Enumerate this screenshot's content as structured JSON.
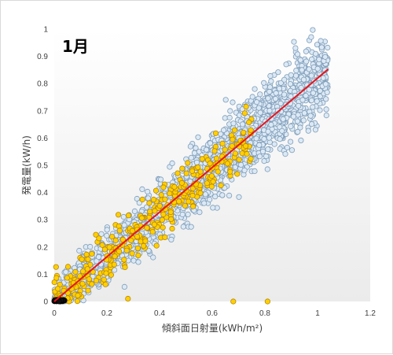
{
  "chart_data": {
    "type": "scatter",
    "title": "1月",
    "xlabel": "傾斜面日射量(kWh/m²)",
    "ylabel": "発電量(kW/h)",
    "xlim": [
      0,
      1.2
    ],
    "ylim": [
      0,
      1
    ],
    "xticks": [
      "0",
      "0.2",
      "0.4",
      "0.6",
      "0.8",
      "1",
      "1.2"
    ],
    "yticks": [
      "0",
      "0.1",
      "0.2",
      "0.3",
      "0.4",
      "0.5",
      "0.6",
      "0.7",
      "0.8",
      "0.9",
      "1"
    ],
    "grid": false,
    "legend": "none",
    "trendline": {
      "slope": 0.82,
      "intercept": 0,
      "x_range": [
        0,
        1.04
      ],
      "color": "#e8141b"
    },
    "series": [
      {
        "marker_fill": "#dce9f5",
        "marker_edge": "#7f9db9",
        "point_count_approx": 2000,
        "x_range": [
          0,
          1.04
        ],
        "y_trend": 0.82,
        "y_spread": 0.07
      },
      {
        "marker_fill": "#ffd000",
        "marker_edge": "#b8860b",
        "point_count_approx": 350,
        "x_range": [
          0,
          0.75
        ],
        "y_trend": 0.82,
        "y_spread": 0.05
      },
      {
        "marker_fill": "#111111",
        "marker_edge": "#000000",
        "point_count_approx": 40,
        "x_range": [
          0,
          0.04
        ],
        "y_trend": 0.0
      }
    ],
    "outliers": [
      {
        "x": 0.68,
        "y": 0.0
      },
      {
        "x": 0.81,
        "y": 0.0
      },
      {
        "x": 0.28,
        "y": 0.01
      }
    ],
    "background": "#ffffff",
    "plot_gradient": [
      "#ffffff",
      "#ececec"
    ]
  }
}
